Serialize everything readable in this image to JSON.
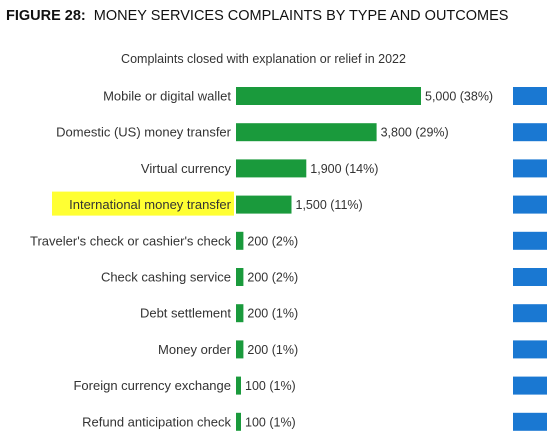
{
  "figure": {
    "number": "FIGURE 28:",
    "title": "MONEY SERVICES COMPLAINTS BY TYPE AND OUTCOMES"
  },
  "colors": {
    "bar": "#1a9a3c",
    "side_bar": "#1a78d2",
    "highlight": "#ffff33"
  },
  "chart_data": {
    "type": "bar",
    "orientation": "horizontal",
    "title": "Complaints closed with explanation or relief in 2022",
    "highlighted_category": "International money transfer",
    "categories": [
      "Mobile or digital wallet",
      "Domestic (US) money transfer",
      "Virtual currency",
      "International money transfer",
      "Traveler's check or cashier's check",
      "Check cashing service",
      "Debt settlement",
      "Money order",
      "Foreign currency exchange",
      "Refund anticipation check"
    ],
    "values": [
      5000,
      3800,
      1900,
      1500,
      200,
      200,
      200,
      200,
      100,
      100
    ],
    "value_labels": [
      "5,000 (38%)",
      "3,800 (29%)",
      "1,900 (14%)",
      "1,500 (11%)",
      "200 (2%)",
      "200 (2%)",
      "200 (1%)",
      "200 (1%)",
      "100 (1%)",
      "100 (1%)"
    ]
  }
}
